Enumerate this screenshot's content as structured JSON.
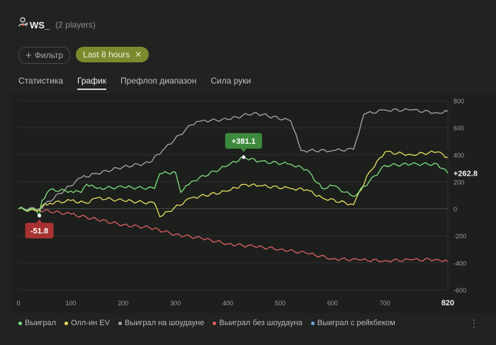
{
  "header": {
    "player_name": "WS_",
    "player_count": "(2 players)"
  },
  "filters": {
    "add_label": "Фильтр",
    "time_label": "Last 8 hours"
  },
  "tabs": [
    {
      "label": "Статистика"
    },
    {
      "label": "График"
    },
    {
      "label": "Префлоп диапазон"
    },
    {
      "label": "Сила руки"
    }
  ],
  "colors": {
    "won": "#7ee07e",
    "allin_ev": "#e8e060",
    "showdown": "#a8a8a8",
    "no_showdown": "#e06060",
    "rakeback": "#6aa8e0"
  },
  "chart_data": {
    "type": "line",
    "x_ticks": [
      "0",
      "100",
      "200",
      "300",
      "400",
      "500",
      "600",
      "700"
    ],
    "x_last_label": "820",
    "y_ticks": [
      "800",
      "600",
      "400",
      "200",
      "0",
      "-200",
      "-400",
      "-600"
    ],
    "xlim": [
      0,
      820
    ],
    "ylim": [
      -600,
      800
    ],
    "annotations": [
      {
        "label": "+381.1",
        "x": 430,
        "y": 381.1,
        "series": "won"
      },
      {
        "label": "-51.8",
        "x": 40,
        "y": -51.8,
        "series": "won"
      },
      {
        "label": "+262.8",
        "x": 820,
        "y": 262.8,
        "series": "won"
      }
    ],
    "series": [
      {
        "name": "Выиграл",
        "key": "won",
        "x": [
          0,
          35,
          40,
          45,
          60,
          100,
          120,
          130,
          150,
          200,
          260,
          270,
          300,
          310,
          330,
          400,
          430,
          460,
          520,
          550,
          580,
          600,
          640,
          670,
          700,
          750,
          800,
          820
        ],
        "y": [
          0,
          -10,
          -51.8,
          60,
          140,
          130,
          120,
          180,
          150,
          160,
          150,
          260,
          270,
          120,
          200,
          320,
          381.1,
          350,
          330,
          290,
          150,
          170,
          90,
          200,
          320,
          330,
          330,
          262.8
        ]
      },
      {
        "name": "Олл-ин EV",
        "key": "allin_ev",
        "x": [
          0,
          35,
          45,
          60,
          100,
          130,
          150,
          200,
          260,
          270,
          330,
          400,
          430,
          460,
          520,
          550,
          580,
          640,
          670,
          700,
          750,
          800,
          820
        ],
        "y": [
          0,
          -20,
          20,
          40,
          60,
          40,
          80,
          60,
          40,
          -60,
          80,
          130,
          180,
          170,
          150,
          140,
          80,
          30,
          270,
          420,
          400,
          420,
          380
        ]
      },
      {
        "name": "Выиграл на шоудауне",
        "key": "showdown",
        "x": [
          0,
          40,
          120,
          150,
          200,
          250,
          280,
          330,
          350,
          400,
          450,
          520,
          540,
          600,
          640,
          660,
          700,
          750,
          800,
          820
        ],
        "y": [
          0,
          0,
          230,
          260,
          310,
          340,
          450,
          620,
          650,
          660,
          710,
          650,
          430,
          430,
          440,
          700,
          730,
          730,
          710,
          720
        ]
      },
      {
        "name": "Выиграл без шоудауна",
        "key": "no_showdown",
        "x": [
          0,
          40,
          100,
          150,
          200,
          250,
          300,
          350,
          400,
          450,
          500,
          550,
          600,
          650,
          700,
          750,
          800,
          820
        ],
        "y": [
          0,
          -10,
          -40,
          -80,
          -120,
          -140,
          -190,
          -220,
          -260,
          -280,
          -300,
          -330,
          -370,
          -380,
          -385,
          -380,
          -375,
          -390
        ]
      },
      {
        "name": "Выиграл с рейкбеком",
        "key": "rakeback",
        "x": [],
        "y": []
      }
    ]
  }
}
